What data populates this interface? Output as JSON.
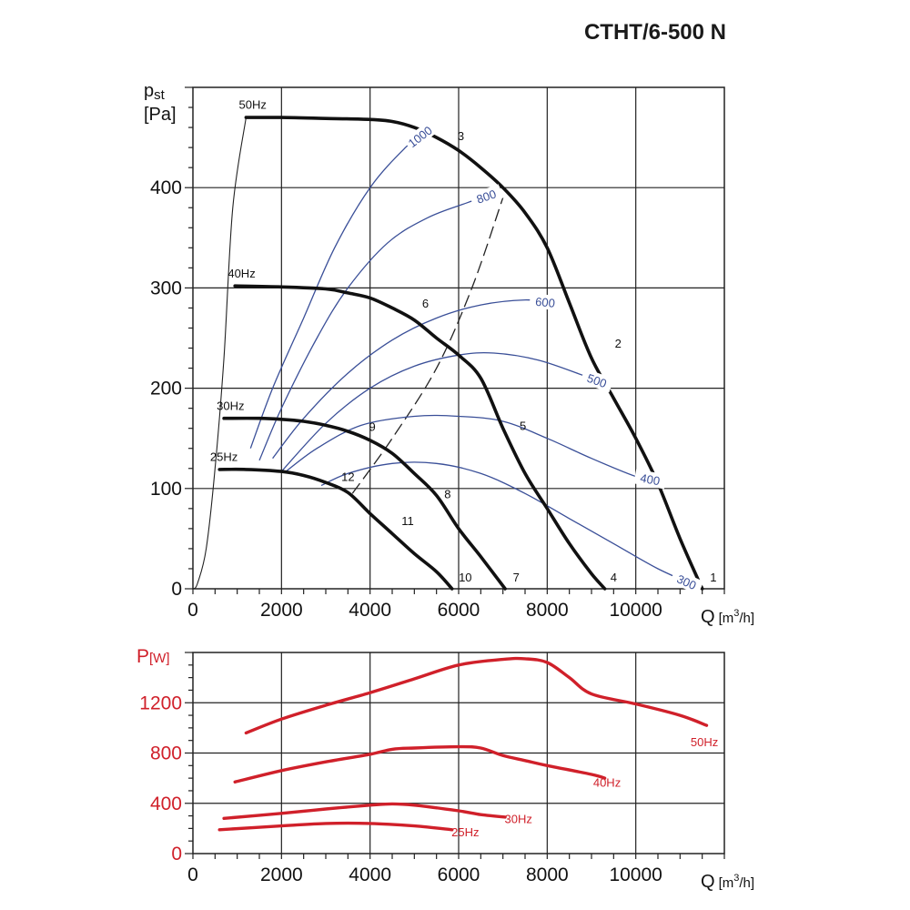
{
  "title": "CTHT/6-500 N",
  "colors": {
    "fan_curve": "#111111",
    "power_iso": "#3a4f98",
    "power_curve": "#d0202a",
    "grid": "#222222"
  },
  "chart_data": [
    {
      "type": "line",
      "id": "pressure",
      "ylabel": "pst",
      "ylabel_main": "p",
      "ylabel_sub": "st",
      "yunit": "[Pa]",
      "xlabel_main": "Q",
      "xunit_pre": "[m",
      "xunit_sup": "3",
      "xunit_post": "/h]",
      "xlim": [
        0,
        12000
      ],
      "ylim": [
        0,
        500
      ],
      "xticks": [
        0,
        2000,
        4000,
        6000,
        8000,
        10000
      ],
      "yticks": [
        0,
        100,
        200,
        300,
        400
      ],
      "grid": true,
      "series": [
        {
          "name": "50Hz",
          "x": [
            1200,
            2000,
            3000,
            4000,
            4500,
            5000,
            5500,
            6000,
            6500,
            7000,
            7500,
            8000,
            8500,
            9000,
            9500,
            10000,
            10500,
            11000,
            11500
          ],
          "y": [
            470,
            470,
            469,
            468,
            466,
            460,
            450,
            437,
            420,
            400,
            375,
            340,
            285,
            230,
            190,
            150,
            105,
            50,
            0
          ]
        },
        {
          "name": "40Hz",
          "x": [
            950,
            2000,
            3000,
            3500,
            4000,
            4500,
            5000,
            5500,
            6000,
            6500,
            7000,
            7500,
            8000,
            8500,
            9000,
            9300
          ],
          "y": [
            302,
            301,
            299,
            295,
            290,
            280,
            268,
            250,
            233,
            210,
            160,
            115,
            80,
            45,
            15,
            0
          ]
        },
        {
          "name": "30Hz",
          "x": [
            700,
            1500,
            2000,
            2500,
            3000,
            3500,
            4000,
            4500,
            5000,
            5500,
            6000,
            6500,
            7050
          ],
          "y": [
            170,
            170,
            169,
            167,
            163,
            157,
            148,
            135,
            115,
            93,
            60,
            32,
            0
          ]
        },
        {
          "name": "25Hz",
          "x": [
            600,
            1200,
            2000,
            2500,
            3000,
            3500,
            4000,
            4500,
            5000,
            5500,
            5850
          ],
          "y": [
            119,
            119,
            117,
            113,
            106,
            96,
            75,
            55,
            35,
            17,
            0
          ]
        }
      ],
      "power_isolines": [
        {
          "label": "1000",
          "x": [
            1300,
            1800,
            2500,
            3200,
            4000,
            4800,
            5300
          ],
          "y": [
            140,
            200,
            270,
            340,
            400,
            440,
            457
          ]
        },
        {
          "label": "800",
          "x": [
            1500,
            2000,
            2800,
            3500,
            4400,
            5300,
            6200,
            6850
          ],
          "y": [
            128,
            180,
            250,
            300,
            345,
            370,
            385,
            395
          ]
        },
        {
          "label": "600",
          "x": [
            1800,
            2500,
            3500,
            4500,
            5500,
            6500,
            7500,
            8200
          ],
          "y": [
            130,
            170,
            215,
            248,
            270,
            283,
            288,
            285
          ]
        },
        {
          "label": "500",
          "x": [
            2000,
            3000,
            4000,
            5000,
            6000,
            6800,
            7800,
            8800,
            9300
          ],
          "y": [
            117,
            165,
            200,
            222,
            233,
            235,
            228,
            213,
            205
          ]
        },
        {
          "label": "400",
          "x": [
            2100,
            2800,
            3800,
            5000,
            6000,
            7000,
            8000,
            9000,
            10000,
            10500
          ],
          "y": [
            117,
            140,
            163,
            172,
            172,
            167,
            150,
            130,
            112,
            108
          ]
        },
        {
          "label": "300",
          "x": [
            2900,
            3500,
            4500,
            5500,
            6500,
            7500,
            8500,
            9500,
            10500,
            11500
          ],
          "y": [
            103,
            115,
            125,
            125,
            115,
            95,
            70,
            45,
            20,
            0
          ]
        }
      ],
      "system_line": {
        "x": [
          3600,
          4500,
          5500,
          6300,
          7000
        ],
        "y": [
          95,
          150,
          220,
          300,
          390
        ]
      },
      "start_line": {
        "x": [
          0,
          100,
          300,
          500,
          700,
          900,
          1200
        ],
        "y": [
          0,
          5,
          40,
          120,
          230,
          380,
          470
        ]
      },
      "point_labels": [
        {
          "label": "1",
          "x": 11750,
          "y": 12
        },
        {
          "label": "2",
          "x": 9600,
          "y": 245
        },
        {
          "label": "3",
          "x": 6050,
          "y": 452
        },
        {
          "label": "4",
          "x": 9500,
          "y": 12
        },
        {
          "label": "5",
          "x": 7450,
          "y": 163
        },
        {
          "label": "6",
          "x": 5250,
          "y": 285
        },
        {
          "label": "7",
          "x": 7300,
          "y": 12
        },
        {
          "label": "8",
          "x": 5750,
          "y": 95
        },
        {
          "label": "9",
          "x": 4050,
          "y": 162
        },
        {
          "label": "10",
          "x": 6150,
          "y": 12
        },
        {
          "label": "11",
          "x": 4850,
          "y": 68
        },
        {
          "label": "12",
          "x": 3500,
          "y": 112
        }
      ],
      "hz_labels": [
        {
          "label": "50Hz",
          "x": 1350,
          "y": 483
        },
        {
          "label": "40Hz",
          "x": 1100,
          "y": 315
        },
        {
          "label": "30Hz",
          "x": 850,
          "y": 183
        },
        {
          "label": "25Hz",
          "x": 700,
          "y": 132
        }
      ]
    },
    {
      "type": "line",
      "id": "power",
      "ylabel_main": "P",
      "ylabel_unit": "[W]",
      "xlabel_main": "Q",
      "xunit_pre": "[m",
      "xunit_sup": "3",
      "xunit_post": "/h]",
      "xlim": [
        0,
        12000
      ],
      "ylim": [
        0,
        1600
      ],
      "xticks": [
        0,
        2000,
        4000,
        6000,
        8000,
        10000
      ],
      "yticks": [
        0,
        400,
        800,
        1200
      ],
      "grid": true,
      "series": [
        {
          "name": "50Hz",
          "x": [
            1200,
            2000,
            3000,
            4000,
            5000,
            6000,
            7000,
            7500,
            8000,
            8500,
            9000,
            10000,
            11000,
            11600
          ],
          "y": [
            960,
            1070,
            1180,
            1280,
            1390,
            1500,
            1545,
            1550,
            1520,
            1400,
            1270,
            1190,
            1100,
            1020
          ]
        },
        {
          "name": "40Hz",
          "x": [
            950,
            2000,
            3000,
            4000,
            4500,
            5000,
            6000,
            6500,
            7000,
            7500,
            8000,
            9000,
            9300
          ],
          "y": [
            570,
            660,
            730,
            790,
            830,
            840,
            850,
            840,
            780,
            740,
            700,
            630,
            600
          ]
        },
        {
          "name": "30Hz",
          "x": [
            700,
            2000,
            3000,
            4000,
            4500,
            5000,
            6000,
            6500,
            7050
          ],
          "y": [
            280,
            320,
            355,
            385,
            395,
            385,
            340,
            310,
            290
          ]
        },
        {
          "name": "25Hz",
          "x": [
            600,
            2000,
            3000,
            4000,
            5000,
            5850
          ],
          "y": [
            190,
            220,
            240,
            240,
            220,
            190
          ]
        }
      ],
      "series_labels": [
        {
          "label": "50Hz",
          "x": 11550,
          "y": 890
        },
        {
          "label": "40Hz",
          "x": 9350,
          "y": 570
        },
        {
          "label": "30Hz",
          "x": 7350,
          "y": 280
        },
        {
          "label": "25Hz",
          "x": 6150,
          "y": 175
        }
      ]
    }
  ]
}
